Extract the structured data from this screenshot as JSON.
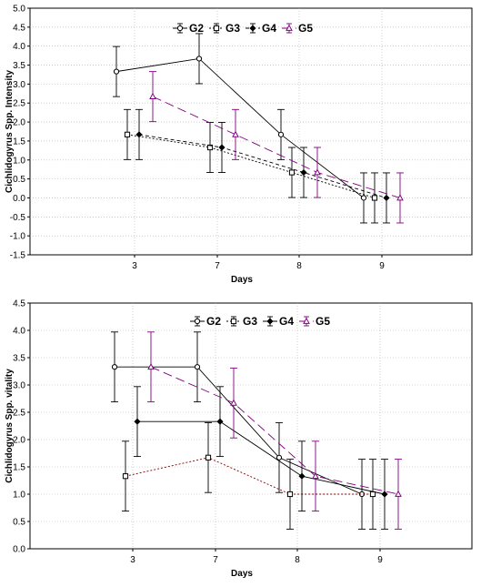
{
  "chart_data": [
    {
      "type": "line",
      "xlabel": "Days",
      "ylabel": "Cichlidogyrus Spp. Intensity",
      "categories": [
        "3",
        "7",
        "8",
        "9"
      ],
      "ylim": [
        -1.5,
        5.0
      ],
      "yticks": [
        "-1.5",
        "-1.0",
        "-0.5",
        "0.0",
        "0.5",
        "1.0",
        "1.5",
        "2.0",
        "2.5",
        "3.0",
        "3.5",
        "4.0",
        "4.5",
        "5.0"
      ],
      "grid": true,
      "legend_position": "top-center",
      "error_bars": true,
      "series": [
        {
          "name": "G2",
          "values": [
            3.33,
            3.67,
            1.67,
            0.0
          ],
          "errors": [
            0.66,
            0.66,
            0.66,
            0.66
          ],
          "color": "#000000",
          "dash": "solid",
          "marker": "circle-open"
        },
        {
          "name": "G3",
          "values": [
            1.67,
            1.33,
            0.67,
            0.0
          ],
          "errors": [
            0.66,
            0.66,
            0.66,
            0.66
          ],
          "color": "#000000",
          "dash": "dotted",
          "marker": "square-open"
        },
        {
          "name": "G4",
          "values": [
            1.67,
            1.33,
            0.67,
            0.0
          ],
          "errors": [
            0.66,
            0.66,
            0.66,
            0.66
          ],
          "color": "#000000",
          "dash": "short-dash",
          "marker": "diamond-filled"
        },
        {
          "name": "G5",
          "values": [
            2.67,
            1.67,
            0.67,
            0.0
          ],
          "errors": [
            0.66,
            0.66,
            0.66,
            0.66
          ],
          "color": "#800080",
          "dash": "long-dash",
          "marker": "triangle-open"
        }
      ]
    },
    {
      "type": "line",
      "xlabel": "Days",
      "ylabel": "Cichlidogyrus Spp. vitality",
      "categories": [
        "3",
        "7",
        "8",
        "9"
      ],
      "ylim": [
        0.0,
        4.5
      ],
      "yticks": [
        "0.0",
        "0.5",
        "1.0",
        "1.5",
        "2.0",
        "2.5",
        "3.0",
        "3.5",
        "4.0",
        "4.5"
      ],
      "grid": true,
      "legend_position": "top-center",
      "error_bars": true,
      "series": [
        {
          "name": "G2",
          "values": [
            3.33,
            3.33,
            1.67,
            1.0
          ],
          "errors": [
            0.64,
            0.64,
            0.64,
            0.64
          ],
          "color": "#000000",
          "dash": "solid",
          "marker": "circle-open"
        },
        {
          "name": "G3",
          "values": [
            1.33,
            1.67,
            1.0,
            1.0
          ],
          "errors": [
            0.64,
            0.64,
            0.64,
            0.64
          ],
          "color": "#800000",
          "dash": "dotted",
          "marker": "square-open"
        },
        {
          "name": "G4",
          "values": [
            2.33,
            2.33,
            1.33,
            1.0
          ],
          "errors": [
            0.64,
            0.64,
            0.64,
            0.64
          ],
          "color": "#000000",
          "dash": "solid",
          "marker": "diamond-filled"
        },
        {
          "name": "G5",
          "values": [
            3.33,
            2.67,
            1.33,
            1.0
          ],
          "errors": [
            0.64,
            0.64,
            0.64,
            0.64
          ],
          "color": "#800080",
          "dash": "long-dash",
          "marker": "triangle-open"
        }
      ]
    }
  ]
}
